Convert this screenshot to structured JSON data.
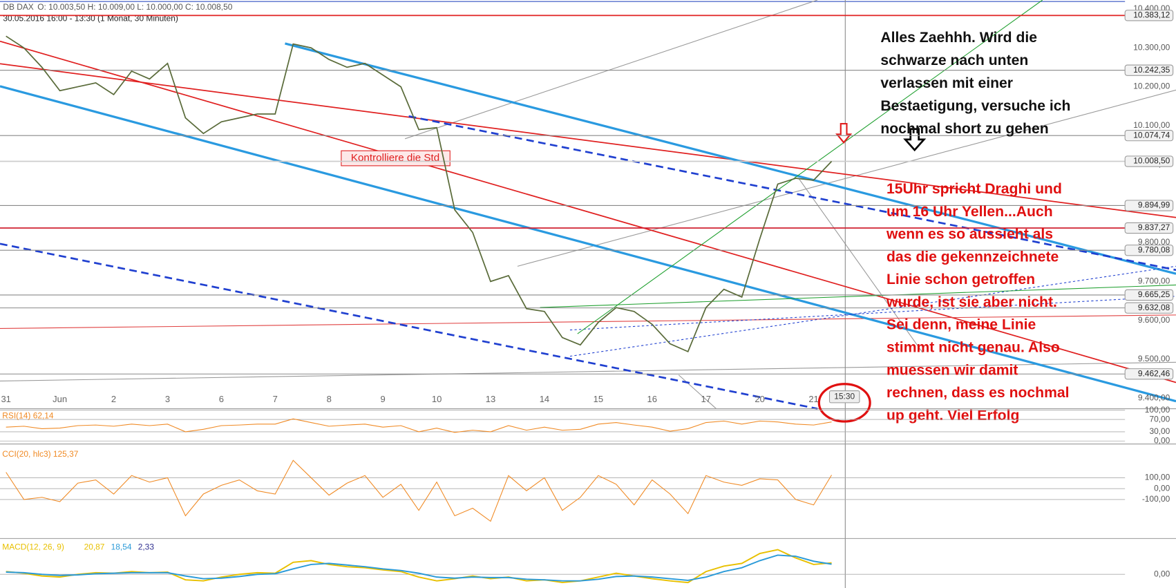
{
  "chart_data": [
    {
      "type": "line",
      "title": "DB DAX",
      "readout": "O: 10.003,50   H: 10.009,00   L: 10.000,00   C: 10.008,50",
      "subtitle": "30.05.2016 16:00 - 13:30 (1 Monat, 30 Minuten)",
      "categories": [
        "31",
        null,
        null,
        "Jun",
        null,
        null,
        "2",
        null,
        null,
        "3",
        null,
        null,
        "6",
        null,
        null,
        "7",
        null,
        null,
        "8",
        null,
        null,
        "9",
        null,
        null,
        "10",
        null,
        null,
        "13",
        null,
        null,
        "14",
        null,
        null,
        "15",
        null,
        null,
        "16",
        null,
        null,
        "17",
        null,
        null,
        "20",
        null,
        null,
        "21",
        null,
        null
      ],
      "values": [
        10330,
        10300,
        10250,
        10190,
        10200,
        10210,
        10180,
        10240,
        10220,
        10260,
        10120,
        10080,
        10110,
        10120,
        10130,
        10130,
        10310,
        10300,
        10270,
        10250,
        10260,
        10230,
        10200,
        10090,
        10095,
        9884,
        9826,
        9700,
        9715,
        9630,
        9623,
        9556,
        9537,
        9595,
        9633,
        9623,
        9590,
        9540,
        9520,
        9633,
        9680,
        9660,
        9810,
        9950,
        9965,
        9960,
        10008.5,
        null
      ],
      "color": "#5a6b3a",
      "ylim": [
        9377,
        10417
      ],
      "yticks": [
        {
          "value": 9400,
          "label": "9.400,00"
        },
        {
          "value": 9500,
          "label": "9.500,00"
        },
        {
          "value": 9600,
          "label": "9.600,00"
        },
        {
          "value": 9700,
          "label": "9.700,00"
        },
        {
          "value": 9800,
          "label": "9.800,00"
        },
        {
          "value": 9900,
          "label": "9.900,00"
        },
        {
          "value": 10000,
          "label": "10.000,00"
        },
        {
          "value": 10100,
          "label": "10.100,00"
        },
        {
          "value": 10200,
          "label": "10.200,00"
        },
        {
          "value": 10300,
          "label": "10.300,00"
        },
        {
          "value": 10400,
          "label": "10.400,00"
        }
      ],
      "levels": [
        {
          "value": 10383.12,
          "label": "10.383,12",
          "color": "#e02020"
        },
        {
          "value": 10242.35,
          "label": "10.242,35",
          "color": "#888888"
        },
        {
          "value": 10074.74,
          "label": "10.074,74",
          "color": "#888888"
        },
        {
          "value": 10008.5,
          "label": "10.008,50",
          "color": "#cccccc"
        },
        {
          "value": 9894.99,
          "label": "9.894,99",
          "color": "#888888"
        },
        {
          "value": 9837.27,
          "label": "9.837,27",
          "color": "#d02030"
        },
        {
          "value": 9780.08,
          "label": "9.780,08",
          "color": "#888888"
        },
        {
          "value": 9665.25,
          "label": "9.665,25",
          "color": "#888888"
        },
        {
          "value": 9632.08,
          "label": "9.632,08",
          "color": "#888888"
        },
        {
          "value": 9462.46,
          "label": "9.462,46",
          "color": "#888888"
        }
      ],
      "annotations": {
        "box": "Kontrolliere die Std",
        "time": "15:30",
        "black": [
          "Alles Zaehhh. Wird die",
          "schwarze nach unten",
          "verlassen mit einer",
          "Bestaetigung, versuche ich",
          "nochmal short zu gehen"
        ],
        "red": [
          "15Uhr spricht Draghi und",
          "um 16 Uhr Yellen...Auch",
          "wenn es so aussieht als",
          "das die gekennzeichnete",
          "Linie schon getroffen",
          "wurde, ist sie aber nicht.",
          "Sei denn, meine Linie",
          "stimmt nicht genau. Also",
          "muessen wir damit",
          "rechnen, dass es nochmal",
          "up geht. Viel Erfolg"
        ]
      }
    },
    {
      "type": "line",
      "title": "RSI(14)  62,14",
      "color": "#f08a24",
      "values": [
        45,
        48,
        40,
        42,
        50,
        52,
        48,
        55,
        50,
        55,
        30,
        38,
        50,
        52,
        55,
        55,
        72,
        60,
        48,
        52,
        55,
        45,
        50,
        30,
        42,
        28,
        35,
        30,
        50,
        35,
        45,
        35,
        38,
        55,
        60,
        52,
        45,
        32,
        40,
        60,
        65,
        55,
        65,
        62,
        55,
        52,
        62,
        null
      ],
      "ylim": [
        0,
        100
      ],
      "yticks": [
        {
          "value": 100,
          "label": "100,00"
        },
        {
          "value": 70,
          "label": "70,00"
        },
        {
          "value": 30,
          "label": "30,00"
        },
        {
          "value": 0,
          "label": "0,00"
        }
      ]
    },
    {
      "type": "line",
      "title": "CCI(20, hlc3)  125,37",
      "color": "#f08a24",
      "values": [
        150,
        -100,
        -80,
        -120,
        50,
        80,
        -50,
        120,
        60,
        100,
        -250,
        -50,
        30,
        80,
        -20,
        -50,
        260,
        100,
        -60,
        50,
        120,
        -80,
        40,
        -200,
        60,
        -250,
        -180,
        -300,
        120,
        -20,
        100,
        -200,
        -80,
        120,
        40,
        -150,
        80,
        -50,
        -230,
        120,
        60,
        30,
        90,
        80,
        -100,
        -150,
        125,
        null
      ],
      "ylim": [
        -445,
        369
      ],
      "yticks": [
        {
          "value": 100,
          "label": "100,00"
        },
        {
          "value": 0,
          "label": "0,00"
        },
        {
          "value": -100,
          "label": "-100,00"
        }
      ]
    },
    {
      "type": "line",
      "title": "MACD(12, 26, 9)",
      "series": [
        {
          "name": "20,87",
          "color": "#e8c000",
          "values": [
            5,
            2,
            -3,
            -5,
            0,
            3,
            2,
            5,
            3,
            4,
            -10,
            -12,
            -5,
            0,
            3,
            2,
            22,
            25,
            18,
            14,
            12,
            8,
            5,
            -5,
            -12,
            -8,
            -3,
            -8,
            -5,
            -12,
            -10,
            -15,
            -12,
            -5,
            2,
            -3,
            -8,
            -12,
            -15,
            5,
            15,
            20,
            38,
            45,
            30,
            18,
            20.87,
            null
          ]
        },
        {
          "name": "18,54",
          "color": "#2a9ad8",
          "values": [
            4,
            3,
            0,
            -2,
            -1,
            1,
            2,
            3,
            3,
            3,
            -3,
            -8,
            -7,
            -4,
            0,
            1,
            10,
            18,
            20,
            17,
            14,
            10,
            7,
            2,
            -5,
            -7,
            -5,
            -6,
            -6,
            -9,
            -10,
            -12,
            -12,
            -9,
            -4,
            -3,
            -5,
            -8,
            -11,
            -5,
            5,
            12,
            25,
            35,
            33,
            24,
            18.54,
            null
          ]
        }
      ],
      "readout": "2,33",
      "ylim": [
        -25,
        60
      ],
      "yticks": [
        {
          "value": 0,
          "label": "0,00"
        }
      ]
    }
  ]
}
